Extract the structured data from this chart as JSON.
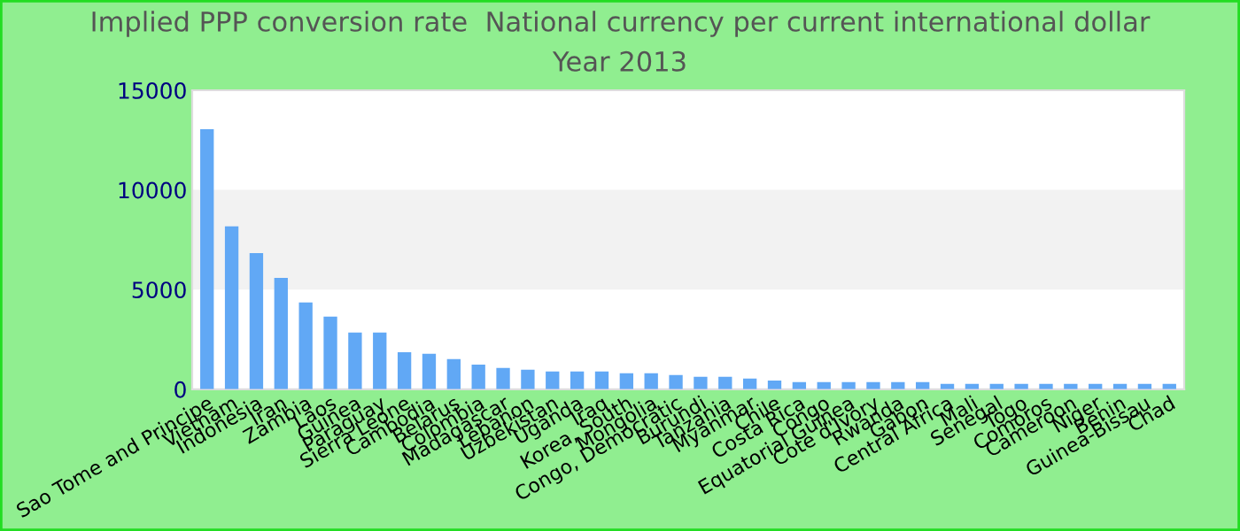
{
  "chart_data": {
    "type": "bar",
    "title": "Implied PPP conversion rate  National currency per current international dollar",
    "subtitle": "Year 2013",
    "categories": [
      "Sao Tome and Principe",
      "Vietnam",
      "Indonesia",
      "Iran",
      "Zambia",
      "Laos",
      "Guinea",
      "Paraguay",
      "Sierra Leone",
      "Cambodia",
      "Belarus",
      "Colombia",
      "Madagascar",
      "Lebanon",
      "Uzbekistan",
      "Uganda",
      "Iraq",
      "Korea, South",
      "Mongolia",
      "Congo, Democratic",
      "Burundi",
      "Tanzania",
      "Myanmar",
      "Chile",
      "Costa Rica",
      "Congo",
      "Equatorial Guinea",
      "Cote d'Ivory",
      "Rwanda",
      "Gabon",
      "Central Africa",
      "Mali",
      "Senegal",
      "Togo",
      "Comoros",
      "Cameroon",
      "Niger",
      "Benin",
      "Guinea-Bissau",
      "Chad"
    ],
    "values": [
      13050,
      8170,
      6830,
      5590,
      4350,
      3640,
      2840,
      2840,
      1860,
      1780,
      1510,
      1240,
      1070,
      980,
      890,
      890,
      890,
      800,
      800,
      710,
      620,
      620,
      530,
      440,
      360,
      360,
      360,
      360,
      360,
      360,
      270,
      270,
      270,
      270,
      270,
      270,
      270,
      270,
      270,
      270
    ],
    "color": "#61a8f5",
    "ylim": [
      0,
      15000
    ],
    "yticks": [
      0,
      5000,
      10000,
      15000
    ],
    "bands": [
      {
        "axis": "y",
        "from": 5000,
        "to": 10000,
        "color": "#f2f2f2"
      }
    ],
    "grid": false,
    "legend": false
  }
}
